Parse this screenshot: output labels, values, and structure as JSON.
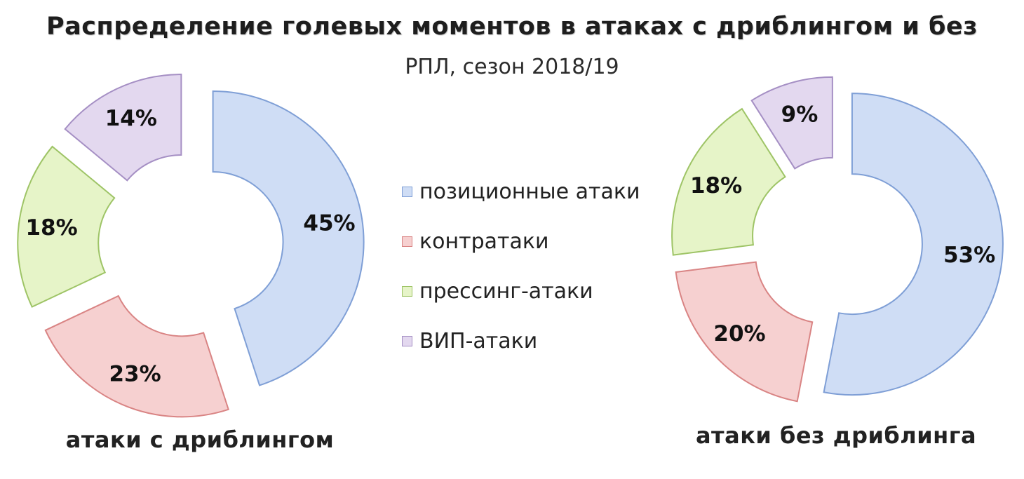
{
  "title": "Распределение голевых моментов в атаках с дриблингом и без",
  "subtitle": "РПЛ, сезон 2018/19",
  "colors": {
    "positional": {
      "fill": "#cfddf5",
      "stroke": "#7f9fd6"
    },
    "counter": {
      "fill": "#f6d0d0",
      "stroke": "#d98484"
    },
    "pressing": {
      "fill": "#e6f4c8",
      "stroke": "#9ec466"
    },
    "vip": {
      "fill": "#e3d8ef",
      "stroke": "#a58fc4"
    }
  },
  "legend": [
    {
      "key": "positional",
      "label": "позиционные атаки"
    },
    {
      "key": "counter",
      "label": "контратаки"
    },
    {
      "key": "pressing",
      "label": "прессинг-атаки"
    },
    {
      "key": "vip",
      "label": "ВИП-атаки"
    }
  ],
  "chart_data": [
    {
      "type": "pie",
      "donut": true,
      "name": "атаки с дриблингом",
      "categories": [
        "позиционные атаки",
        "контратаки",
        "прессинг-атаки",
        "ВИП-атаки"
      ],
      "keys": [
        "positional",
        "counter",
        "pressing",
        "vip"
      ],
      "values": [
        45,
        23,
        18,
        14
      ],
      "labels": [
        "45%",
        "23%",
        "18%",
        "14%"
      ]
    },
    {
      "type": "pie",
      "donut": true,
      "name": "атаки без дриблинга",
      "categories": [
        "позиционные атаки",
        "контратаки",
        "прессинг-атаки",
        "ВИП-атаки"
      ],
      "keys": [
        "positional",
        "counter",
        "pressing",
        "vip"
      ],
      "values": [
        53,
        20,
        18,
        9
      ],
      "labels": [
        "53%",
        "20%",
        "18%",
        "9%"
      ]
    }
  ]
}
